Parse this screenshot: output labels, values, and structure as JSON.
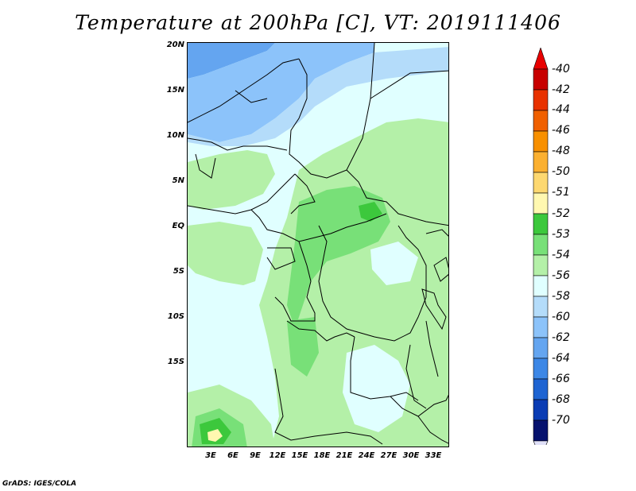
{
  "title": "Temperature at 200hPa [C], VT: 2019111406",
  "credit": "GrADS: IGES/COLA",
  "lat_labels": [
    "20N",
    "15N",
    "10N",
    "5N",
    "EQ",
    "5S",
    "10S",
    "15S"
  ],
  "lon_labels": [
    "3E",
    "6E",
    "9E",
    "12E",
    "15E",
    "18E",
    "21E",
    "24E",
    "27E",
    "30E",
    "33E"
  ],
  "colorbar": {
    "labels": [
      "-40",
      "-42",
      "-44",
      "-46",
      "-48",
      "-50",
      "-51",
      "-52",
      "-53",
      "-54",
      "-56",
      "-58",
      "-60",
      "-62",
      "-64",
      "-66",
      "-68",
      "-70"
    ],
    "colors": [
      "#c80000",
      "#e83200",
      "#f06000",
      "#f89000",
      "#fbb030",
      "#fdd870",
      "#fff8b0",
      "#3cc83c",
      "#78e078",
      "#b4f0a8",
      "#e0ffff",
      "#b4dcfa",
      "#8cc3fa",
      "#64a5f0",
      "#3c87e6",
      "#1e64d2",
      "#0a3cb4",
      "#06126e"
    ],
    "triangle_top": "#e80000",
    "triangle_bottom": "#e0e0f8"
  },
  "map_colors": {
    "background": "#e0ffff",
    "light_green": "#b4f0a8",
    "green": "#78e078",
    "dark_green": "#3cc83c",
    "pale_yellow": "#fff8b0",
    "light_blue": "#b4dcfa",
    "blue": "#8cc3fa",
    "deep_blue": "#64a5f0"
  }
}
